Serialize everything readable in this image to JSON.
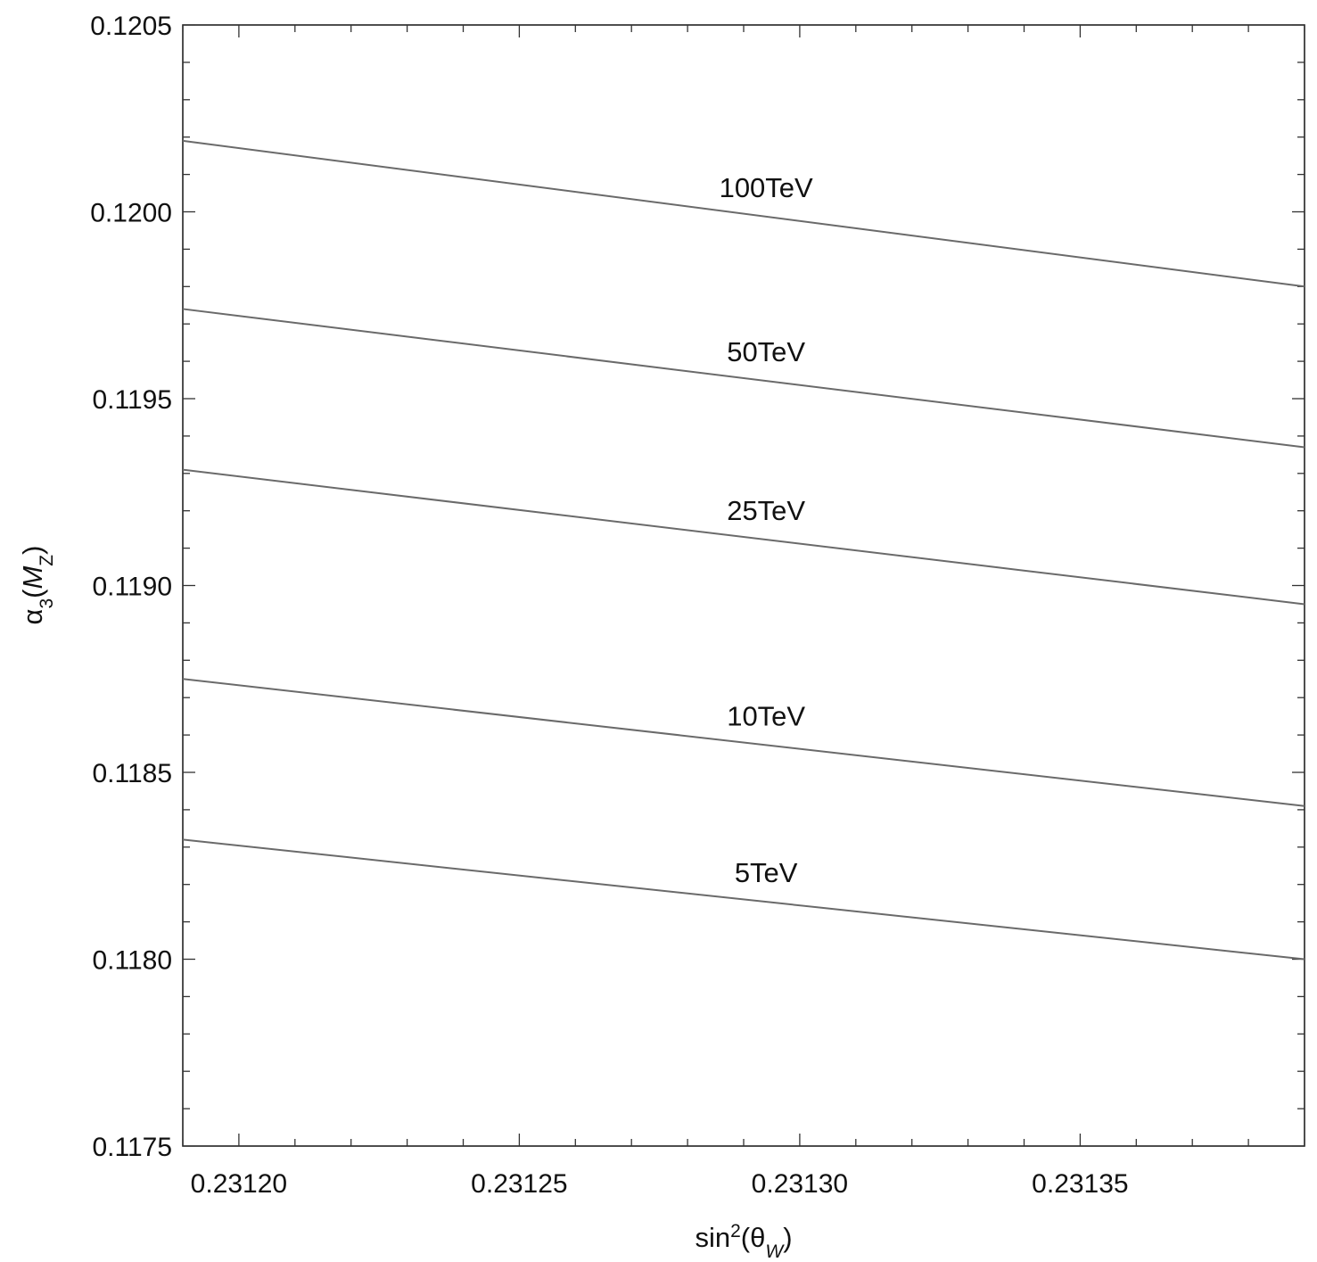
{
  "chart_data": {
    "type": "line",
    "title": "",
    "xlabel": {
      "base": "sin",
      "sup": "2",
      "open": "(θ",
      "sub": "W",
      "close": ")"
    },
    "ylabel": {
      "base": "α",
      "sub1": "3",
      "open": "(",
      "italic": "M",
      "sub2": "Z",
      "close": ")"
    },
    "xlim": [
      0.23119,
      0.23139
    ],
    "ylim": [
      0.1175,
      0.1205
    ],
    "x_ticks": [
      "0.23120",
      "0.23125",
      "0.23130",
      "0.23135"
    ],
    "x_tick_values": [
      0.2312,
      0.23125,
      0.2313,
      0.23135
    ],
    "y_ticks": [
      "0.1175",
      "0.1180",
      "0.1185",
      "0.1190",
      "0.1195",
      "0.1200",
      "0.1205"
    ],
    "y_tick_values": [
      0.1175,
      0.118,
      0.1185,
      0.119,
      0.1195,
      0.12,
      0.1205
    ],
    "grid": false,
    "series": [
      {
        "name": "100TeV",
        "x": [
          0.23119,
          0.23139
        ],
        "y": [
          0.12019,
          0.1198
        ],
        "label_x": 0.231294
      },
      {
        "name": "50TeV",
        "x": [
          0.23119,
          0.23139
        ],
        "y": [
          0.11974,
          0.11937
        ],
        "label_x": 0.231294
      },
      {
        "name": "25TeV",
        "x": [
          0.23119,
          0.23139
        ],
        "y": [
          0.11931,
          0.11895
        ],
        "label_x": 0.231294
      },
      {
        "name": "10TeV",
        "x": [
          0.23119,
          0.23139
        ],
        "y": [
          0.11875,
          0.11841
        ],
        "label_x": 0.231294
      },
      {
        "name": "5TeV",
        "x": [
          0.23119,
          0.23139
        ],
        "y": [
          0.11832,
          0.118
        ],
        "label_x": 0.231294
      }
    ]
  }
}
